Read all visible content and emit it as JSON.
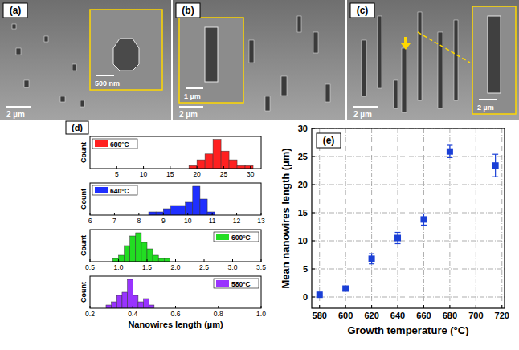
{
  "images": [
    {
      "label": "(a)",
      "scale_bar": "2 µm",
      "inset_scale_bar": "500 nm"
    },
    {
      "label": "(b)",
      "scale_bar": "2 µm",
      "inset_scale_bar": "1 µm"
    },
    {
      "label": "(c)",
      "scale_bar": "2 µm",
      "inset_scale_bar": "2 µm"
    }
  ],
  "chart_data": [
    {
      "type": "histogram",
      "annotations": [
        "(d)"
      ],
      "y_label": "Count",
      "tick_labels": "x",
      "legend": "upper left",
      "bins": [
        18.5,
        20,
        21.5,
        23,
        24.5,
        26,
        27.5,
        29,
        30.5
      ],
      "series": [
        {
          "name": "680°C",
          "color": "#ff2020",
          "values": [
            1,
            3,
            5,
            10,
            6,
            3,
            1,
            1
          ]
        }
      ],
      "xlim": [
        0,
        32
      ],
      "xticks": [
        5,
        10,
        15,
        20,
        25,
        30
      ],
      "ylim": [
        0,
        11
      ]
    },
    {
      "type": "histogram",
      "y_label": "Count",
      "tick_labels": "x",
      "legend": "upper left",
      "bins": [
        8.4,
        8.7,
        9.0,
        9.3,
        9.6,
        9.9,
        10.2,
        10.5,
        10.8,
        11.1
      ],
      "series": [
        {
          "name": "640°C",
          "color": "#1f2fff",
          "values": [
            1,
            1,
            2,
            3,
            3,
            4,
            9,
            5,
            1
          ]
        }
      ],
      "xlim": [
        6,
        13
      ],
      "xticks": [
        6,
        7,
        8,
        9,
        10,
        11,
        12,
        13
      ],
      "ylim": [
        0,
        10
      ]
    },
    {
      "type": "histogram",
      "y_label": "Count",
      "tick_labels": "x",
      "legend": "upper right",
      "bins": [
        0.9,
        1.0,
        1.1,
        1.2,
        1.3,
        1.4,
        1.5,
        1.6,
        1.7,
        1.8,
        1.9
      ],
      "series": [
        {
          "name": "600°C",
          "color": "#22dd22",
          "values": [
            1,
            2,
            5,
            8,
            9,
            6,
            4,
            2,
            1,
            1
          ]
        }
      ],
      "xlim": [
        0.5,
        3.5
      ],
      "xticks": [
        0.5,
        {
          "value": 1,
          "label": "1.0"
        },
        1.5,
        {
          "value": 2,
          "label": "2.0"
        },
        2.5,
        {
          "value": 3,
          "label": "3.0"
        },
        3.5
      ],
      "ylim": [
        0,
        10
      ]
    },
    {
      "type": "histogram",
      "y_label": "Count",
      "x_label": "Nanowires length (µm)",
      "tick_labels": "x",
      "legend": "upper right",
      "bins": [
        0.275,
        0.3,
        0.325,
        0.35,
        0.375,
        0.4,
        0.425,
        0.45,
        0.475,
        0.5
      ],
      "series": [
        {
          "name": "580°C",
          "color": "#9933ff",
          "values": [
            1,
            2,
            4,
            5,
            9,
            4,
            2,
            3,
            1
          ]
        }
      ],
      "xlim": [
        0.2,
        1.0
      ],
      "xticks": [
        0.2,
        0.4,
        0.6,
        0.8,
        {
          "value": 1,
          "label": "1.0"
        }
      ],
      "ylim": [
        0,
        10
      ]
    },
    {
      "type": "scatter",
      "annotations": [
        "(e)"
      ],
      "x_label": "Growth temperature (°C)",
      "y_label": "Mean nanowires length (µm)",
      "x": [
        580,
        600,
        620,
        640,
        660,
        680,
        715
      ],
      "values": [
        0.4,
        1.5,
        6.8,
        10.5,
        13.8,
        25.9,
        23.4
      ],
      "errors": [
        0.2,
        0.3,
        0.9,
        1.0,
        1.0,
        1.1,
        2.0
      ],
      "color": "#1a3fd6",
      "marker": "square",
      "grid": true,
      "xlim": [
        574,
        722
      ],
      "xticks": [
        580,
        600,
        620,
        640,
        660,
        680,
        700,
        720
      ],
      "ylim": [
        -2,
        30
      ],
      "yticks": [
        0,
        5,
        10,
        15,
        20,
        25,
        30
      ]
    }
  ]
}
